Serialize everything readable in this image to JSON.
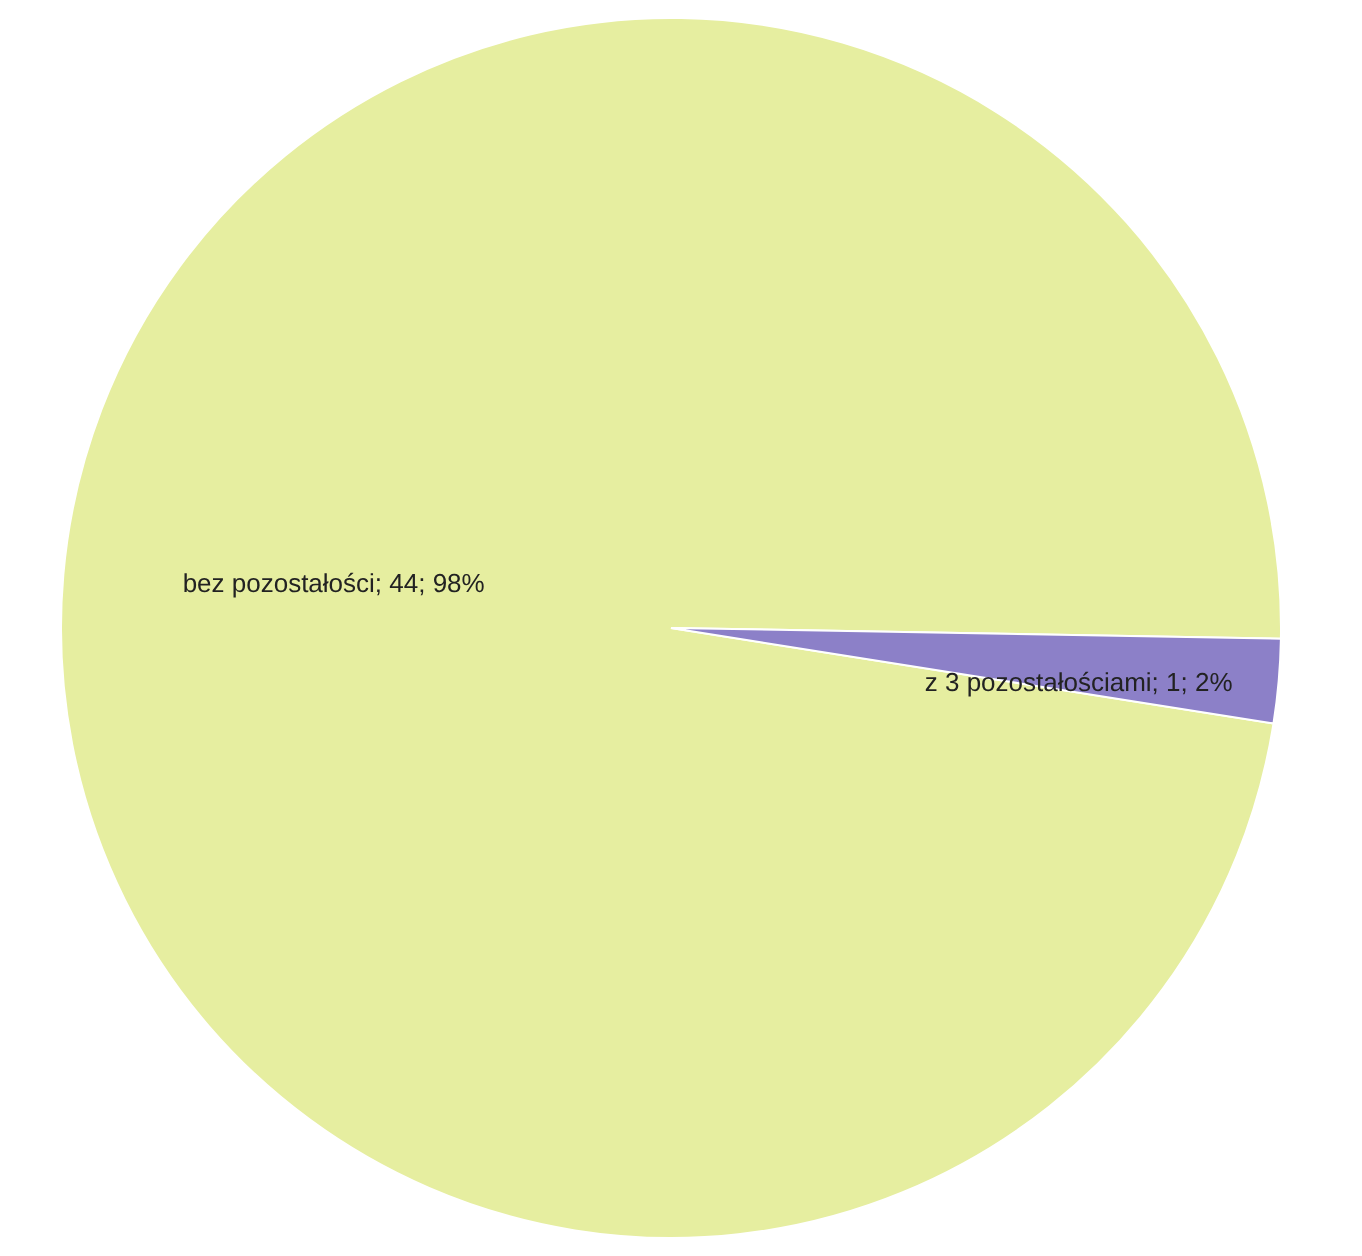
{
  "chart_data": {
    "type": "pie",
    "categories": [
      "bez pozostałości",
      "z 3 pozostałościami"
    ],
    "values": [
      44,
      1
    ],
    "value_labels": [
      "44; 98%",
      "1; 2%"
    ],
    "colors": [
      "#e6eea0",
      "#8c80c8"
    ],
    "legend": false
  }
}
